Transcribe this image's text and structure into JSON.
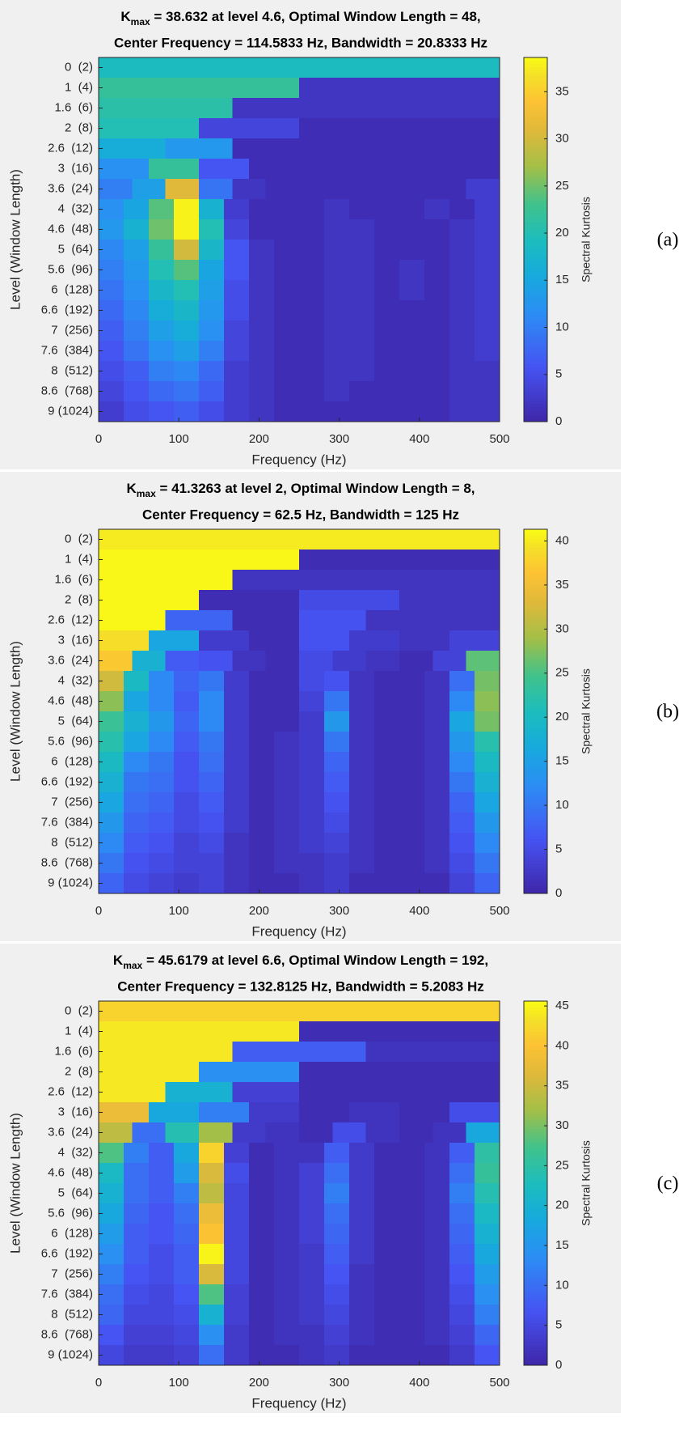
{
  "chart_data": [
    {
      "type": "heatmap",
      "title_symbol": "K",
      "title_subscript": "max",
      "title_rest": " = 38.632 at level 4.6, Optimal Window Length = 48,",
      "subtitle": "Center Frequency = 114.5833 Hz, Bandwidth = 20.8333 Hz",
      "xlabel": "Frequency (Hz)",
      "ylabel": "Level (Window Length)",
      "colorbar_label": "Spectral Kurtosis",
      "panel_label": "(a)",
      "colormap": "parula",
      "xlim": [
        0,
        500
      ],
      "xticks": [
        0,
        100,
        200,
        300,
        400,
        500
      ],
      "clim": [
        0,
        38.632
      ],
      "cticks": [
        0,
        5,
        10,
        15,
        20,
        25,
        30,
        35
      ],
      "categories": [
        "0  (2)",
        "1  (4)",
        "1.6  (6)",
        "2  (8)",
        "2.6  (12)",
        "3  (16)",
        "3.6  (24)",
        "4  (32)",
        "4.6  (48)",
        "5  (64)",
        "5.6  (96)",
        "6  (128)",
        "6.6  (192)",
        "7  (256)",
        "7.6  (384)",
        "8  (512)",
        "8.6  (768)",
        "9 (1024)"
      ],
      "rows": [
        [
          19
        ],
        [
          22,
          2
        ],
        [
          21,
          2,
          2
        ],
        [
          20,
          4,
          1,
          1
        ],
        [
          16,
          13,
          1,
          1,
          1,
          1
        ],
        [
          12,
          22,
          6,
          1,
          1,
          1,
          1,
          1
        ],
        [
          10,
          14,
          31,
          9,
          2,
          1,
          1,
          1,
          1,
          1,
          1,
          3
        ],
        [
          12,
          15,
          24,
          38,
          17,
          3,
          1,
          1,
          1,
          2,
          1,
          1,
          1,
          2,
          1,
          3
        ],
        [
          13,
          17,
          25,
          38,
          20,
          4,
          1,
          1,
          1,
          2,
          2,
          1,
          1,
          1,
          2,
          3
        ],
        [
          11,
          14,
          22,
          30,
          18,
          6,
          2,
          1,
          1,
          2,
          2,
          1,
          1,
          1,
          2,
          3
        ],
        [
          10,
          13,
          20,
          24,
          15,
          6,
          2,
          1,
          1,
          2,
          2,
          1,
          2,
          1,
          2,
          3
        ],
        [
          9,
          12,
          18,
          20,
          14,
          5,
          2,
          1,
          1,
          2,
          2,
          1,
          2,
          1,
          2,
          3
        ],
        [
          8,
          11,
          16,
          18,
          13,
          5,
          2,
          1,
          1,
          2,
          2,
          1,
          1,
          1,
          2,
          3
        ],
        [
          7,
          10,
          14,
          16,
          12,
          4,
          2,
          1,
          1,
          2,
          2,
          1,
          1,
          1,
          2,
          3
        ],
        [
          6,
          9,
          12,
          14,
          10,
          4,
          2,
          1,
          1,
          2,
          2,
          1,
          1,
          1,
          2,
          3
        ],
        [
          5,
          7,
          10,
          11,
          8,
          3,
          2,
          1,
          1,
          2,
          2,
          1,
          1,
          1,
          2,
          2
        ],
        [
          4,
          6,
          8,
          9,
          7,
          3,
          2,
          1,
          1,
          2,
          1,
          1,
          1,
          1,
          2,
          2
        ],
        [
          3,
          5,
          6,
          7,
          5,
          3,
          2,
          1,
          1,
          1,
          1,
          1,
          1,
          1,
          2,
          2
        ]
      ]
    },
    {
      "type": "heatmap",
      "title_symbol": "K",
      "title_subscript": "max",
      "title_rest": " = 41.3263 at level 2, Optimal Window Length = 8,",
      "subtitle": "Center Frequency = 62.5 Hz, Bandwidth = 125 Hz",
      "xlabel": "Frequency (Hz)",
      "ylabel": "Level (Window Length)",
      "colorbar_label": "Spectral Kurtosis",
      "panel_label": "(b)",
      "colormap": "parula",
      "xlim": [
        0,
        500
      ],
      "xticks": [
        0,
        100,
        200,
        300,
        400,
        500
      ],
      "clim": [
        0,
        41.3263
      ],
      "cticks": [
        0,
        5,
        10,
        15,
        20,
        25,
        30,
        35,
        40
      ],
      "categories": [
        "0  (2)",
        "1  (4)",
        "1.6  (6)",
        "2  (8)",
        "2.6  (12)",
        "3  (16)",
        "3.6  (24)",
        "4  (32)",
        "4.6  (48)",
        "5  (64)",
        "5.6  (96)",
        "6  (128)",
        "6.6  (192)",
        "7  (256)",
        "7.6  (384)",
        "8  (512)",
        "8.6  (768)",
        "9 (1024)"
      ],
      "rows": [
        [
          40
        ],
        [
          41,
          1
        ],
        [
          41,
          2,
          2
        ],
        [
          41,
          1,
          5,
          2
        ],
        [
          41,
          8,
          1,
          6,
          2,
          2
        ],
        [
          39,
          16,
          3,
          1,
          6,
          3,
          2,
          4
        ],
        [
          37,
          18,
          7,
          6,
          2,
          1,
          5,
          3,
          2,
          1,
          4,
          26
        ],
        [
          32,
          20,
          12,
          8,
          10,
          3,
          1,
          1,
          5,
          6,
          2,
          1,
          1,
          2,
          9,
          27
        ],
        [
          28,
          16,
          12,
          7,
          12,
          3,
          1,
          1,
          4,
          10,
          2,
          1,
          1,
          2,
          12,
          28
        ],
        [
          24,
          18,
          14,
          8,
          12,
          3,
          1,
          1,
          3,
          14,
          2,
          1,
          1,
          2,
          16,
          27
        ],
        [
          22,
          16,
          12,
          7,
          10,
          3,
          1,
          2,
          3,
          10,
          2,
          1,
          1,
          2,
          14,
          22
        ],
        [
          20,
          12,
          10,
          6,
          9,
          3,
          1,
          2,
          3,
          8,
          2,
          1,
          1,
          2,
          12,
          20
        ],
        [
          18,
          10,
          9,
          6,
          8,
          3,
          1,
          2,
          3,
          7,
          2,
          1,
          1,
          2,
          10,
          18
        ],
        [
          16,
          9,
          8,
          5,
          7,
          3,
          1,
          2,
          3,
          6,
          2,
          1,
          1,
          2,
          8,
          16
        ],
        [
          14,
          8,
          7,
          5,
          6,
          3,
          1,
          2,
          3,
          5,
          2,
          1,
          1,
          2,
          7,
          14
        ],
        [
          12,
          7,
          6,
          4,
          5,
          2,
          1,
          2,
          3,
          4,
          2,
          1,
          1,
          2,
          6,
          12
        ],
        [
          10,
          6,
          5,
          4,
          4,
          2,
          1,
          2,
          2,
          3,
          2,
          1,
          1,
          2,
          5,
          10
        ],
        [
          8,
          5,
          4,
          3,
          4,
          2,
          1,
          1,
          2,
          3,
          1,
          1,
          1,
          1,
          4,
          8
        ]
      ]
    },
    {
      "type": "heatmap",
      "title_symbol": "K",
      "title_subscript": "max",
      "title_rest": " = 45.6179 at level 6.6, Optimal Window Length = 192,",
      "subtitle": "Center Frequency = 132.8125 Hz, Bandwidth = 5.2083 Hz",
      "xlabel": "Frequency (Hz)",
      "ylabel": "Level (Window Length)",
      "colorbar_label": "Spectral Kurtosis",
      "panel_label": "(c)",
      "colormap": "parula",
      "xlim": [
        0,
        500
      ],
      "xticks": [
        0,
        100,
        200,
        300,
        400,
        500
      ],
      "clim": [
        0,
        45.6179
      ],
      "cticks": [
        0,
        5,
        10,
        15,
        20,
        25,
        30,
        35,
        40,
        45
      ],
      "categories": [
        "0  (2)",
        "1  (4)",
        "1.6  (6)",
        "2  (8)",
        "2.6  (12)",
        "3  (16)",
        "3.6  (24)",
        "4  (32)",
        "4.6  (48)",
        "5  (64)",
        "5.6  (96)",
        "6  (128)",
        "6.6  (192)",
        "7  (256)",
        "7.6  (384)",
        "8  (512)",
        "8.6  (768)",
        "9 (1024)"
      ],
      "rows": [
        [
          42
        ],
        [
          44,
          1
        ],
        [
          44,
          8,
          2
        ],
        [
          44,
          14,
          1,
          1
        ],
        [
          44,
          20,
          4,
          1,
          1,
          1
        ],
        [
          38,
          18,
          12,
          3,
          1,
          2,
          1,
          6
        ],
        [
          34,
          10,
          24,
          32,
          3,
          2,
          1,
          6,
          2,
          1,
          2,
          18
        ],
        [
          28,
          12,
          8,
          18,
          42,
          4,
          1,
          2,
          2,
          8,
          3,
          1,
          1,
          2,
          8,
          25
        ],
        [
          22,
          10,
          8,
          16,
          36,
          6,
          1,
          2,
          4,
          10,
          3,
          1,
          1,
          2,
          10,
          26
        ],
        [
          20,
          10,
          8,
          12,
          34,
          5,
          1,
          2,
          4,
          12,
          3,
          1,
          1,
          2,
          12,
          24
        ],
        [
          18,
          9,
          7,
          10,
          38,
          5,
          1,
          2,
          4,
          10,
          3,
          1,
          1,
          2,
          10,
          22
        ],
        [
          16,
          8,
          7,
          9,
          40,
          5,
          1,
          2,
          4,
          9,
          3,
          1,
          1,
          2,
          9,
          20
        ],
        [
          14,
          8,
          6,
          8,
          45,
          5,
          1,
          2,
          3,
          8,
          3,
          1,
          1,
          2,
          8,
          18
        ],
        [
          12,
          7,
          6,
          8,
          36,
          5,
          1,
          2,
          3,
          7,
          2,
          1,
          1,
          2,
          7,
          16
        ],
        [
          10,
          6,
          5,
          7,
          28,
          4,
          1,
          2,
          3,
          6,
          2,
          1,
          1,
          2,
          6,
          14
        ],
        [
          9,
          5,
          5,
          6,
          20,
          4,
          1,
          2,
          3,
          5,
          2,
          1,
          1,
          2,
          5,
          12
        ],
        [
          7,
          4,
          4,
          5,
          14,
          3,
          1,
          2,
          2,
          4,
          2,
          1,
          1,
          2,
          4,
          9
        ],
        [
          5,
          3,
          3,
          4,
          10,
          3,
          1,
          1,
          2,
          3,
          1,
          1,
          1,
          1,
          3,
          7
        ]
      ]
    }
  ]
}
